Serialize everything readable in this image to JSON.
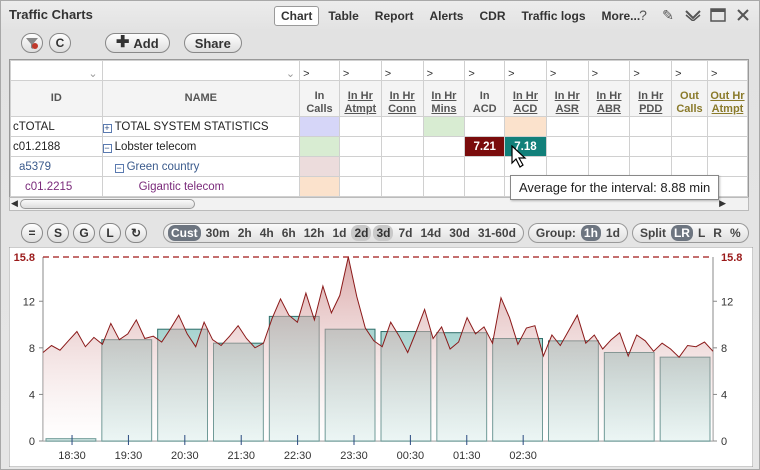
{
  "app": {
    "title": "Traffic Charts",
    "menu": [
      {
        "label": "Chart",
        "active": true
      },
      {
        "label": "Table"
      },
      {
        "label": "Report"
      },
      {
        "label": "Alerts"
      },
      {
        "label": "CDR"
      },
      {
        "label": "Traffic logs"
      },
      {
        "label": "More..."
      }
    ]
  },
  "toolbar": {
    "add_label": "Add",
    "share_label": "Share",
    "c_label": "C"
  },
  "grid": {
    "filter_marker": ">",
    "columns": [
      {
        "label": "ID"
      },
      {
        "label": "NAME"
      },
      {
        "label": "In Calls",
        "l1": "In",
        "l2": "Calls"
      },
      {
        "label": "In Hr Atmpt",
        "l1": "In Hr",
        "l2": "Atmpt"
      },
      {
        "label": "In Hr Conn",
        "l1": "In Hr",
        "l2": "Conn"
      },
      {
        "label": "In Hr Mins",
        "l1": "In Hr",
        "l2": "Mins"
      },
      {
        "label": "In ACD",
        "l1": "In",
        "l2": "ACD"
      },
      {
        "label": "In Hr ACD",
        "l1": "In Hr",
        "l2": "ACD"
      },
      {
        "label": "In Hr ASR",
        "l1": "In Hr",
        "l2": "ASR"
      },
      {
        "label": "In Hr ABR",
        "l1": "In Hr",
        "l2": "ABR"
      },
      {
        "label": "In Hr PDD",
        "l1": "In Hr",
        "l2": "PDD"
      },
      {
        "label": "Out Calls",
        "l1": "Out",
        "l2": "Calls"
      },
      {
        "label": "Out Hr Atmpt",
        "l1": "Out Hr",
        "l2": "Atmpt"
      }
    ],
    "rows": [
      {
        "id": "cTOTAL",
        "tree": "+",
        "name": "TOTAL SYSTEM STATISTICS",
        "in_acd": "",
        "in_hr_acd": ""
      },
      {
        "id": "c01.2188",
        "tree": "−",
        "name": "Lobster telecom",
        "in_acd": "7.21",
        "in_hr_acd": "7.18"
      },
      {
        "id": "a5379",
        "tree": "−",
        "name": "Green country",
        "in_acd": "",
        "in_hr_acd": ""
      },
      {
        "id": "c01.2215",
        "tree": "",
        "name": "Gigantic telecom",
        "in_acd": "",
        "in_hr_acd": ""
      }
    ]
  },
  "tooltip": "Average for the interval: 8.88 min",
  "chart_controls": {
    "mode_buttons": [
      "=",
      "S",
      "G",
      "L",
      "↻"
    ],
    "ranges": [
      "Cust",
      "30m",
      "2h",
      "4h",
      "6h",
      "12h",
      "1d",
      "2d",
      "3d",
      "7d",
      "14d",
      "30d",
      "31-60d"
    ],
    "active_range": "Cust",
    "highlight_ranges": [
      "2d",
      "3d"
    ],
    "group_label": "Group:",
    "group_options": [
      "1h",
      "1d"
    ],
    "active_group": "1h",
    "split_label": "Split",
    "split_options": [
      "LR",
      "L",
      "R",
      "%"
    ],
    "active_split": "LR"
  },
  "colors": {
    "line": "#8b1a1a",
    "area_top": "#c98080",
    "bar_fill": "#a8d4d0",
    "bar_stroke": "#2e6e6a",
    "max_line": "#a01818",
    "val_red": "#7a0c0c",
    "val_teal": "#12807a"
  },
  "chart_data": {
    "type": "line",
    "y_ticks": [
      "0",
      "4",
      "8",
      "12"
    ],
    "y_max_label": "15.8",
    "y_max": 15.8,
    "ylim": [
      0,
      15.8
    ],
    "x_ticks": [
      "18:30",
      "19:30",
      "20:30",
      "21:30",
      "22:30",
      "23:30",
      "00:30",
      "01:30",
      "02:30"
    ],
    "hourly_bars": [
      0.2,
      8.7,
      9.6,
      8.4,
      10.7,
      9.6,
      9.4,
      9.3,
      8.8,
      8.6,
      7.6,
      7.2
    ],
    "line_values": [
      7.6,
      8.2,
      7.8,
      8.6,
      9.4,
      8.1,
      8.9,
      8.3,
      10.1,
      8.7,
      9.2,
      10.4,
      8.8,
      9.0,
      8.5,
      9.6,
      10.8,
      9.2,
      8.1,
      10.2,
      8.7,
      8.2,
      9.0,
      9.9,
      8.8,
      8.0,
      8.4,
      10.5,
      12.2,
      10.8,
      10.2,
      12.7,
      10.4,
      13.3,
      11.0,
      12.5,
      15.8,
      12.4,
      9.7,
      8.6,
      8.1,
      10.2,
      9.0,
      7.6,
      9.4,
      11.3,
      8.8,
      9.8,
      7.9,
      8.5,
      10.6,
      9.2,
      9.8,
      8.4,
      12.3,
      10.6,
      8.3,
      9.7,
      9.9,
      7.3,
      9.1,
      8.2,
      9.5,
      10.8,
      8.4,
      9.1,
      7.9,
      8.7,
      9.3,
      7.3,
      9.1,
      8.6,
      7.7,
      8.4,
      7.9,
      7.2,
      8.2,
      8.1,
      8.5,
      7.7
    ]
  }
}
